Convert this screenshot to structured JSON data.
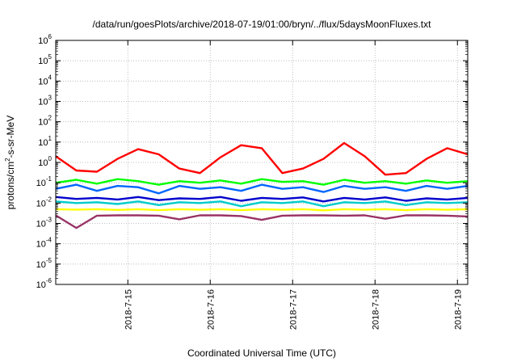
{
  "chart_data": {
    "type": "line",
    "title": "/data/run/goesPlots/archive/2018-07-19/01:00/bryn/../flux/5daysMoonFluxes.txt",
    "xlabel": "Coordinated Universal Time (UTC)",
    "ylabel": "protons/cm²-s-sr-MeV",
    "ylabel_parts": [
      "protons/cm",
      "2",
      "-s-sr-MeV"
    ],
    "x_range": [
      "2018-07-14 03:00",
      "2018-07-19 03:00"
    ],
    "y_scale": "log",
    "ylim": [
      1e-06,
      1000000.0
    ],
    "y_ticks": [
      {
        "base": "10",
        "exp": "-6",
        "value": 1e-06
      },
      {
        "base": "10",
        "exp": "-5",
        "value": 1e-05
      },
      {
        "base": "10",
        "exp": "-4",
        "value": 0.0001
      },
      {
        "base": "10",
        "exp": "-3",
        "value": 0.001
      },
      {
        "base": "10",
        "exp": "-2",
        "value": 0.01
      },
      {
        "base": "10",
        "exp": "-1",
        "value": 0.1
      },
      {
        "base": "10",
        "exp": "0",
        "value": 1
      },
      {
        "base": "10",
        "exp": "1",
        "value": 10
      },
      {
        "base": "10",
        "exp": "2",
        "value": 100
      },
      {
        "base": "10",
        "exp": "3",
        "value": 1000
      },
      {
        "base": "10",
        "exp": "4",
        "value": 10000
      },
      {
        "base": "10",
        "exp": "5",
        "value": 100000
      },
      {
        "base": "10",
        "exp": "6",
        "value": 1000000
      }
    ],
    "x_ticks": [
      {
        "label": "2018-7-15",
        "date": "2018-07-15"
      },
      {
        "label": "2018-7-16",
        "date": "2018-07-16"
      },
      {
        "label": "2018-7-17",
        "date": "2018-07-17"
      },
      {
        "label": "2018-7-18",
        "date": "2018-07-18"
      },
      {
        "label": "2018-7-19",
        "date": "2018-07-19"
      }
    ],
    "grid": true,
    "legend": "none",
    "series": [
      {
        "color": "#ff0000",
        "x": [
          "2018-07-14 03:00",
          "2018-07-14 09:00",
          "2018-07-14 15:00",
          "2018-07-14 21:00",
          "2018-07-15 03:00",
          "2018-07-15 09:00",
          "2018-07-15 15:00",
          "2018-07-15 21:00",
          "2018-07-16 03:00",
          "2018-07-16 09:00",
          "2018-07-16 15:00",
          "2018-07-16 21:00",
          "2018-07-17 03:00",
          "2018-07-17 09:00",
          "2018-07-17 15:00",
          "2018-07-17 21:00",
          "2018-07-18 03:00",
          "2018-07-18 09:00",
          "2018-07-18 15:00",
          "2018-07-18 21:00",
          "2018-07-19 03:00"
        ],
        "y": [
          2.0,
          0.4,
          0.35,
          1.5,
          4.5,
          2.5,
          0.5,
          0.3,
          1.8,
          7,
          5,
          0.3,
          0.5,
          1.5,
          9,
          2,
          0.25,
          0.3,
          1.5,
          5,
          2.5
        ]
      },
      {
        "color": "#00ff00",
        "x": [
          "2018-07-14 03:00",
          "2018-07-14 09:00",
          "2018-07-14 15:00",
          "2018-07-14 21:00",
          "2018-07-15 03:00",
          "2018-07-15 09:00",
          "2018-07-15 15:00",
          "2018-07-15 21:00",
          "2018-07-16 03:00",
          "2018-07-16 09:00",
          "2018-07-16 15:00",
          "2018-07-16 21:00",
          "2018-07-17 03:00",
          "2018-07-17 09:00",
          "2018-07-17 15:00",
          "2018-07-17 21:00",
          "2018-07-18 03:00",
          "2018-07-18 09:00",
          "2018-07-18 15:00",
          "2018-07-18 21:00",
          "2018-07-19 03:00"
        ],
        "y": [
          0.1,
          0.14,
          0.09,
          0.15,
          0.12,
          0.08,
          0.12,
          0.1,
          0.13,
          0.09,
          0.15,
          0.11,
          0.12,
          0.08,
          0.14,
          0.1,
          0.12,
          0.09,
          0.13,
          0.1,
          0.12
        ]
      },
      {
        "color": "#0066ff",
        "x": [
          "2018-07-14 03:00",
          "2018-07-14 09:00",
          "2018-07-14 15:00",
          "2018-07-14 21:00",
          "2018-07-15 03:00",
          "2018-07-15 09:00",
          "2018-07-15 15:00",
          "2018-07-15 21:00",
          "2018-07-16 03:00",
          "2018-07-16 09:00",
          "2018-07-16 15:00",
          "2018-07-16 21:00",
          "2018-07-17 03:00",
          "2018-07-17 09:00",
          "2018-07-17 15:00",
          "2018-07-17 21:00",
          "2018-07-18 03:00",
          "2018-07-18 09:00",
          "2018-07-18 15:00",
          "2018-07-18 21:00",
          "2018-07-19 03:00"
        ],
        "y": [
          0.05,
          0.08,
          0.04,
          0.07,
          0.06,
          0.03,
          0.07,
          0.05,
          0.06,
          0.04,
          0.08,
          0.05,
          0.06,
          0.035,
          0.07,
          0.05,
          0.06,
          0.04,
          0.07,
          0.05,
          0.07
        ]
      },
      {
        "color": "#00cccc",
        "x": [
          "2018-07-14 03:00",
          "2018-07-14 09:00",
          "2018-07-14 15:00",
          "2018-07-14 21:00",
          "2018-07-15 03:00",
          "2018-07-15 09:00",
          "2018-07-15 15:00",
          "2018-07-15 21:00",
          "2018-07-16 03:00",
          "2018-07-16 09:00",
          "2018-07-16 15:00",
          "2018-07-16 21:00",
          "2018-07-17 03:00",
          "2018-07-17 09:00",
          "2018-07-17 15:00",
          "2018-07-17 21:00",
          "2018-07-18 03:00",
          "2018-07-18 09:00",
          "2018-07-18 15:00",
          "2018-07-18 21:00",
          "2018-07-19 03:00"
        ],
        "y": [
          0.012,
          0.01,
          0.011,
          0.009,
          0.012,
          0.008,
          0.011,
          0.01,
          0.012,
          0.007,
          0.011,
          0.01,
          0.012,
          0.007,
          0.011,
          0.01,
          0.012,
          0.008,
          0.011,
          0.01,
          0.011
        ]
      },
      {
        "color": "#0000cc",
        "x": [
          "2018-07-14 03:00",
          "2018-07-14 09:00",
          "2018-07-14 15:00",
          "2018-07-14 21:00",
          "2018-07-15 03:00",
          "2018-07-15 09:00",
          "2018-07-15 15:00",
          "2018-07-15 21:00",
          "2018-07-16 03:00",
          "2018-07-16 09:00",
          "2018-07-16 15:00",
          "2018-07-16 21:00",
          "2018-07-17 03:00",
          "2018-07-17 09:00",
          "2018-07-17 15:00",
          "2018-07-17 21:00",
          "2018-07-18 03:00",
          "2018-07-18 09:00",
          "2018-07-18 15:00",
          "2018-07-18 21:00",
          "2018-07-19 03:00"
        ],
        "y": [
          0.02,
          0.016,
          0.018,
          0.015,
          0.02,
          0.014,
          0.017,
          0.016,
          0.02,
          0.013,
          0.018,
          0.016,
          0.019,
          0.012,
          0.018,
          0.015,
          0.019,
          0.013,
          0.017,
          0.015,
          0.018
        ]
      },
      {
        "color": "#ffff00",
        "x": [
          "2018-07-14 03:00",
          "2018-07-14 09:00",
          "2018-07-14 15:00",
          "2018-07-14 21:00",
          "2018-07-15 03:00",
          "2018-07-15 09:00",
          "2018-07-15 15:00",
          "2018-07-15 21:00",
          "2018-07-16 03:00",
          "2018-07-16 09:00",
          "2018-07-16 15:00",
          "2018-07-16 21:00",
          "2018-07-17 03:00",
          "2018-07-17 09:00",
          "2018-07-17 15:00",
          "2018-07-17 21:00",
          "2018-07-18 03:00",
          "2018-07-18 09:00",
          "2018-07-18 15:00",
          "2018-07-18 21:00",
          "2018-07-19 03:00"
        ],
        "y": [
          0.005,
          0.0048,
          0.005,
          0.0046,
          0.005,
          0.0045,
          0.005,
          0.0047,
          0.005,
          0.0045,
          0.005,
          0.0047,
          0.005,
          0.0044,
          0.005,
          0.0047,
          0.005,
          0.0045,
          0.005,
          0.0047,
          0.005
        ]
      },
      {
        "color": "#993366",
        "x": [
          "2018-07-14 03:00",
          "2018-07-14 09:00",
          "2018-07-14 15:00",
          "2018-07-14 21:00",
          "2018-07-15 03:00",
          "2018-07-15 09:00",
          "2018-07-15 15:00",
          "2018-07-15 21:00",
          "2018-07-16 03:00",
          "2018-07-16 09:00",
          "2018-07-16 15:00",
          "2018-07-16 21:00",
          "2018-07-17 03:00",
          "2018-07-17 09:00",
          "2018-07-17 15:00",
          "2018-07-17 21:00",
          "2018-07-18 03:00",
          "2018-07-18 09:00",
          "2018-07-18 15:00",
          "2018-07-18 21:00",
          "2018-07-19 03:00"
        ],
        "y": [
          0.0025,
          0.0006,
          0.0024,
          0.0025,
          0.0025,
          0.0024,
          0.0016,
          0.0025,
          0.0025,
          0.0023,
          0.0015,
          0.0024,
          0.0025,
          0.0025,
          0.0024,
          0.0025,
          0.0017,
          0.0025,
          0.0025,
          0.0024,
          0.0022
        ]
      }
    ]
  }
}
